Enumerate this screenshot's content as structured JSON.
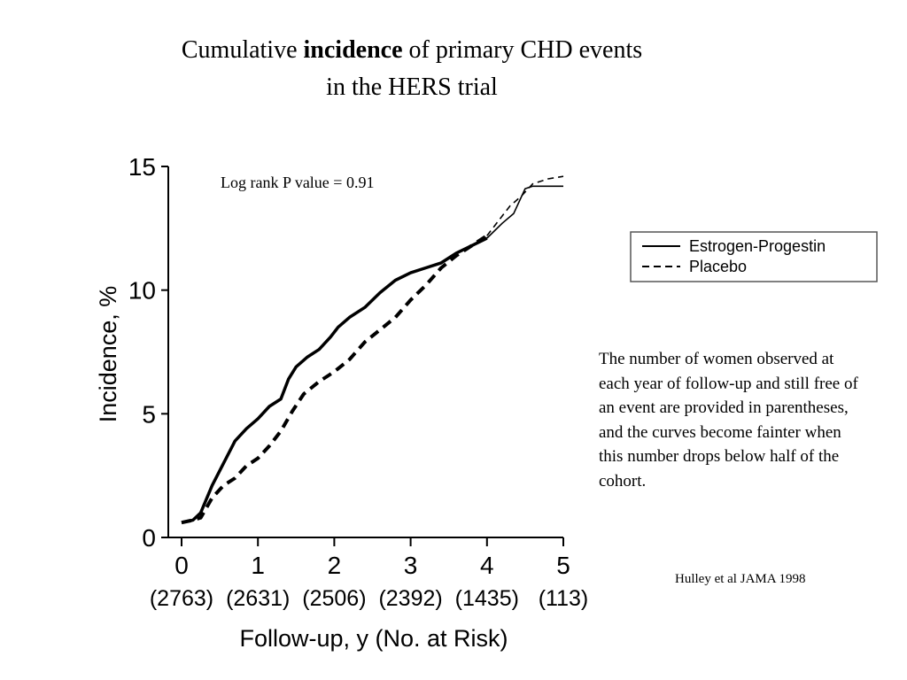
{
  "slide": {
    "title_pre": "Cumulative ",
    "title_bold": "incidence",
    "title_post": " of primary CHD events",
    "title_line2": "in the HERS trial",
    "note": "The number of women observed at each year of follow-up and still free of an event are provided in parentheses, and the curves become fainter when this number drops below half of the cohort.",
    "citation": "Hulley et al JAMA 1998"
  },
  "chart_data": {
    "type": "line",
    "title": "",
    "xlabel": "Follow-up, y (No. at Risk)",
    "ylabel": "Incidence, %",
    "xlim": [
      0,
      5
    ],
    "ylim": [
      0,
      15
    ],
    "x_ticks": [
      "0",
      "1",
      "2",
      "3",
      "4",
      "5"
    ],
    "at_risk": [
      "(2763)",
      "(2631)",
      "(2506)",
      "(2392)",
      "(1435)",
      "(113)"
    ],
    "y_ticks": [
      "0",
      "5",
      "10",
      "15"
    ],
    "annotation": "Log rank P value = 0.91",
    "grid": false,
    "legend_position": "right",
    "fade_after_x": 4,
    "series": [
      {
        "name": "Estrogen-Progestin",
        "style": "solid",
        "color": "#000000",
        "x": [
          0,
          0.15,
          0.25,
          0.4,
          0.55,
          0.7,
          0.85,
          1.0,
          1.15,
          1.3,
          1.4,
          1.5,
          1.65,
          1.8,
          1.95,
          2.05,
          2.2,
          2.4,
          2.6,
          2.8,
          3.0,
          3.2,
          3.4,
          3.6,
          3.8,
          4.0,
          4.2,
          4.35,
          4.5,
          4.6,
          4.8,
          5.0
        ],
        "y": [
          0.6,
          0.7,
          1.0,
          2.1,
          3.0,
          3.9,
          4.4,
          4.8,
          5.3,
          5.6,
          6.4,
          6.9,
          7.3,
          7.6,
          8.1,
          8.5,
          8.9,
          9.3,
          9.9,
          10.4,
          10.7,
          10.9,
          11.1,
          11.5,
          11.8,
          12.1,
          12.7,
          13.1,
          14.1,
          14.2,
          14.2,
          14.2
        ]
      },
      {
        "name": "Placebo",
        "style": "dashed",
        "color": "#000000",
        "x": [
          0,
          0.15,
          0.25,
          0.4,
          0.55,
          0.7,
          0.85,
          1.0,
          1.15,
          1.3,
          1.45,
          1.6,
          1.8,
          2.0,
          2.2,
          2.4,
          2.6,
          2.8,
          3.0,
          3.2,
          3.4,
          3.6,
          3.8,
          4.0,
          4.15,
          4.3,
          4.45,
          4.6,
          4.8,
          5.0
        ],
        "y": [
          0.6,
          0.7,
          0.8,
          1.6,
          2.1,
          2.4,
          2.9,
          3.2,
          3.7,
          4.3,
          5.1,
          5.8,
          6.3,
          6.7,
          7.2,
          7.9,
          8.4,
          8.9,
          9.6,
          10.2,
          10.9,
          11.4,
          11.8,
          12.2,
          12.8,
          13.4,
          13.8,
          14.3,
          14.5,
          14.6
        ]
      }
    ]
  }
}
